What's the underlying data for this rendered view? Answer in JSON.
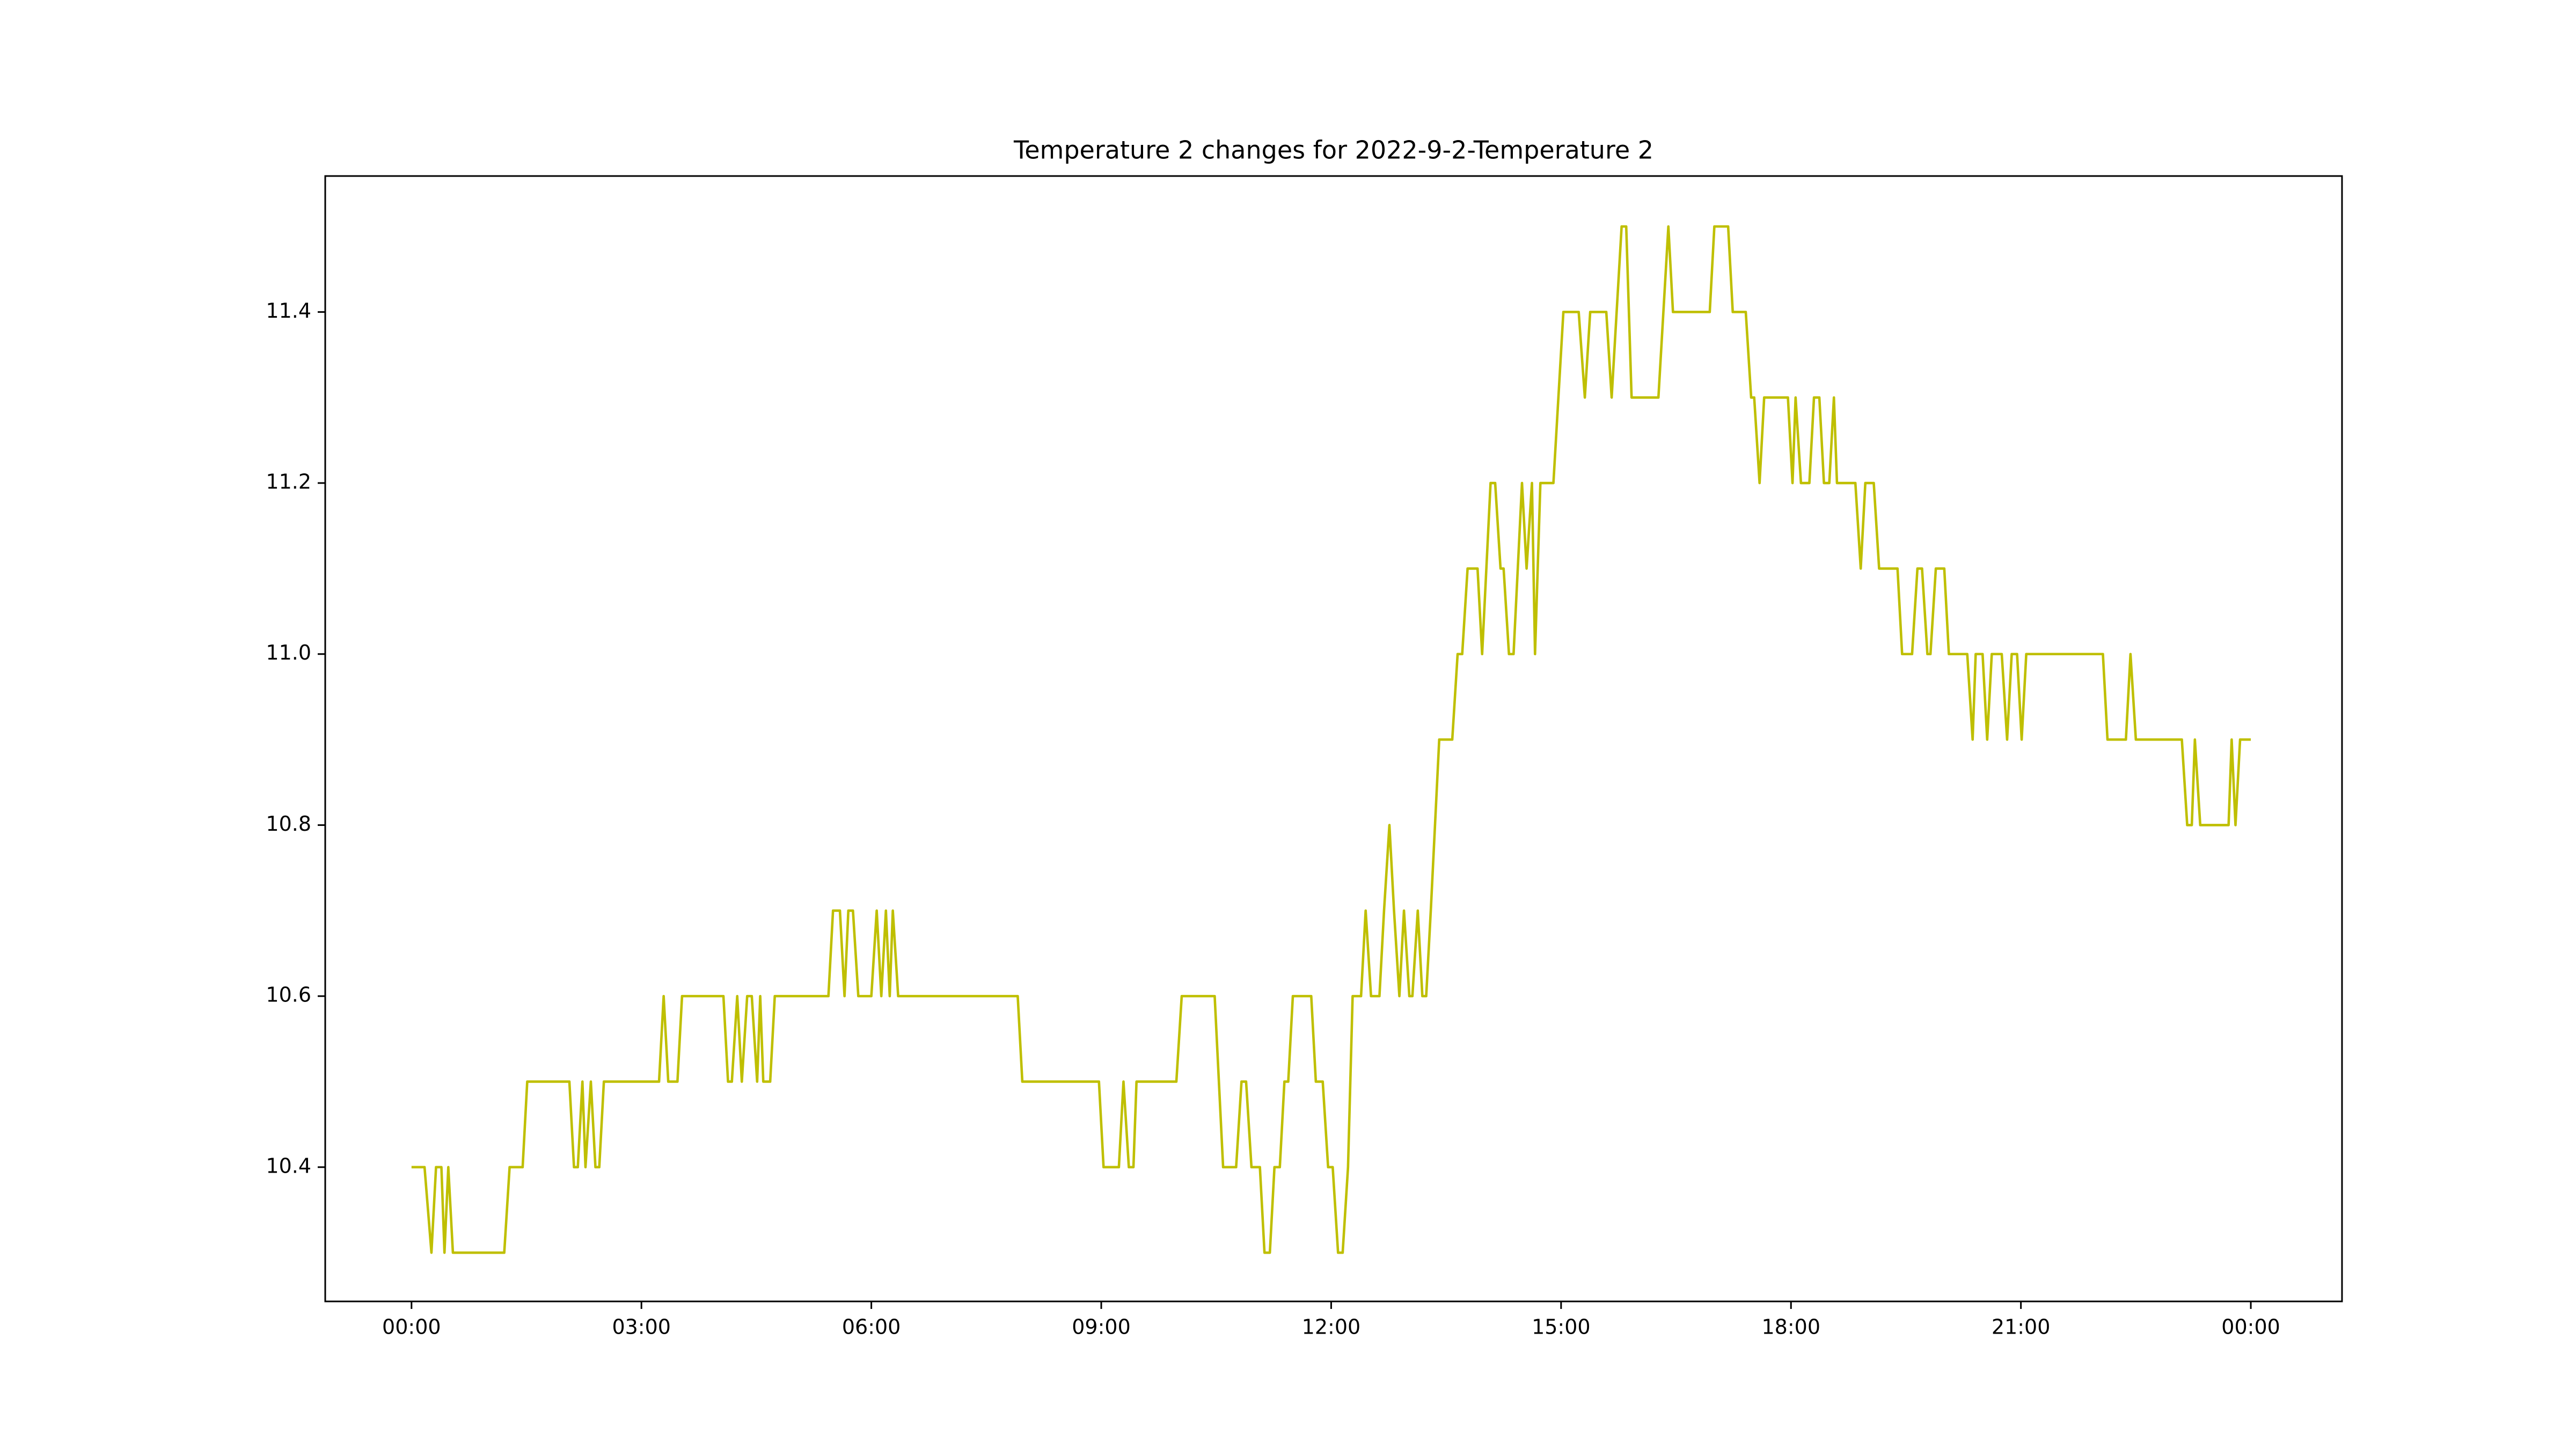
{
  "chart_data": {
    "type": "line",
    "title": "Temperature 2 changes for 2022-9-2-Temperature 2",
    "color": "#bfbf00",
    "x": [
      0,
      0.17,
      0.26,
      0.32,
      0.39,
      0.43,
      0.48,
      0.54,
      1.21,
      1.28,
      1.45,
      1.51,
      2.06,
      2.12,
      2.17,
      2.23,
      2.27,
      2.34,
      2.4,
      2.45,
      2.51,
      3.23,
      3.29,
      3.35,
      3.47,
      3.53,
      4.07,
      4.13,
      4.18,
      4.25,
      4.31,
      4.38,
      4.44,
      4.51,
      4.55,
      4.59,
      4.68,
      4.74,
      5.44,
      5.5,
      5.59,
      5.65,
      5.7,
      5.76,
      5.83,
      6,
      6.07,
      6.13,
      6.19,
      6.24,
      6.28,
      6.35,
      7.91,
      7.97,
      8.97,
      9.03,
      9.23,
      9.29,
      9.36,
      9.42,
      9.46,
      9.98,
      10.05,
      10.48,
      10.59,
      10.76,
      10.83,
      10.89,
      10.96,
      11.07,
      11.13,
      11.2,
      11.26,
      11.33,
      11.39,
      11.44,
      11.5,
      11.74,
      11.8,
      11.89,
      11.96,
      12.02,
      12.09,
      12.15,
      12.22,
      12.28,
      12.39,
      12.45,
      12.52,
      12.63,
      12.69,
      12.76,
      12.82,
      12.89,
      12.95,
      13.02,
      13.06,
      13.13,
      13.19,
      13.24,
      13.3,
      13.41,
      13.58,
      13.65,
      13.71,
      13.78,
      13.91,
      13.97,
      14.08,
      14.14,
      14.21,
      14.25,
      14.32,
      14.38,
      14.49,
      14.55,
      14.62,
      14.66,
      14.73,
      14.9,
      15.03,
      15.23,
      15.31,
      15.38,
      15.59,
      15.66,
      15.79,
      15.85,
      15.92,
      16.27,
      16.4,
      16.46,
      16.94,
      17,
      17.18,
      17.24,
      17.41,
      17.48,
      17.52,
      17.59,
      17.65,
      17.96,
      18.02,
      18.06,
      18.13,
      18.24,
      18.3,
      18.37,
      18.43,
      18.5,
      18.56,
      18.6,
      18.84,
      18.91,
      18.97,
      19.08,
      19.15,
      19.39,
      19.45,
      19.58,
      19.65,
      19.71,
      19.78,
      19.82,
      19.89,
      20,
      20.06,
      20.3,
      20.37,
      20.41,
      20.5,
      20.56,
      20.62,
      20.75,
      20.82,
      20.88,
      20.95,
      21.01,
      21.07,
      22.07,
      22.13,
      22.37,
      22.43,
      22.5,
      23.1,
      23.17,
      23.23,
      23.27,
      23.34,
      23.71,
      23.75,
      23.8,
      23.86,
      24
    ],
    "values": [
      10.4,
      10.4,
      10.3,
      10.4,
      10.4,
      10.3,
      10.4,
      10.3,
      10.3,
      10.4,
      10.4,
      10.5,
      10.5,
      10.4,
      10.4,
      10.5,
      10.4,
      10.5,
      10.4,
      10.4,
      10.5,
      10.5,
      10.6,
      10.5,
      10.5,
      10.6,
      10.6,
      10.5,
      10.5,
      10.6,
      10.5,
      10.6,
      10.6,
      10.5,
      10.6,
      10.5,
      10.5,
      10.6,
      10.6,
      10.7,
      10.7,
      10.6,
      10.7,
      10.7,
      10.6,
      10.6,
      10.7,
      10.6,
      10.7,
      10.6,
      10.7,
      10.6,
      10.6,
      10.5,
      10.5,
      10.4,
      10.4,
      10.5,
      10.4,
      10.4,
      10.5,
      10.5,
      10.6,
      10.6,
      10.4,
      10.4,
      10.5,
      10.5,
      10.4,
      10.4,
      10.3,
      10.3,
      10.4,
      10.4,
      10.5,
      10.5,
      10.6,
      10.6,
      10.5,
      10.5,
      10.4,
      10.4,
      10.3,
      10.3,
      10.4,
      10.6,
      10.6,
      10.7,
      10.6,
      10.6,
      10.7,
      10.8,
      10.7,
      10.6,
      10.7,
      10.6,
      10.6,
      10.7,
      10.6,
      10.6,
      10.7,
      10.9,
      10.9,
      11,
      11,
      11.1,
      11.1,
      11,
      11.2,
      11.2,
      11.1,
      11.1,
      11,
      11,
      11.2,
      11.1,
      11.2,
      11,
      11.2,
      11.2,
      11.4,
      11.4,
      11.3,
      11.4,
      11.4,
      11.3,
      11.5,
      11.5,
      11.3,
      11.3,
      11.5,
      11.4,
      11.4,
      11.5,
      11.5,
      11.4,
      11.4,
      11.3,
      11.3,
      11.2,
      11.3,
      11.3,
      11.2,
      11.3,
      11.2,
      11.2,
      11.3,
      11.3,
      11.2,
      11.2,
      11.3,
      11.2,
      11.2,
      11.1,
      11.2,
      11.2,
      11.1,
      11.1,
      11,
      11,
      11.1,
      11.1,
      11,
      11,
      11.1,
      11.1,
      11,
      11,
      10.9,
      11,
      11,
      10.9,
      11,
      11,
      10.9,
      11,
      11,
      10.9,
      11,
      11,
      10.9,
      10.9,
      11,
      10.9,
      10.9,
      10.8,
      10.8,
      10.9,
      10.8,
      10.8,
      10.9,
      10.8,
      10.9,
      10.9
    ],
    "xlim": [
      -1.126,
      25.19
    ],
    "xticks": [
      {
        "value": 0,
        "label": "00:00"
      },
      {
        "value": 3,
        "label": "03:00"
      },
      {
        "value": 6,
        "label": "06:00"
      },
      {
        "value": 9,
        "label": "09:00"
      },
      {
        "value": 12,
        "label": "12:00"
      },
      {
        "value": 15,
        "label": "15:00"
      },
      {
        "value": 18,
        "label": "18:00"
      },
      {
        "value": 21,
        "label": "21:00"
      },
      {
        "value": 24,
        "label": "00:00"
      }
    ],
    "ylim": [
      10.243,
      11.559
    ],
    "yticks": [
      10.4,
      10.6,
      10.8,
      {
        "value": 11,
        "label": "11.0"
      },
      11.2,
      11.4
    ]
  }
}
